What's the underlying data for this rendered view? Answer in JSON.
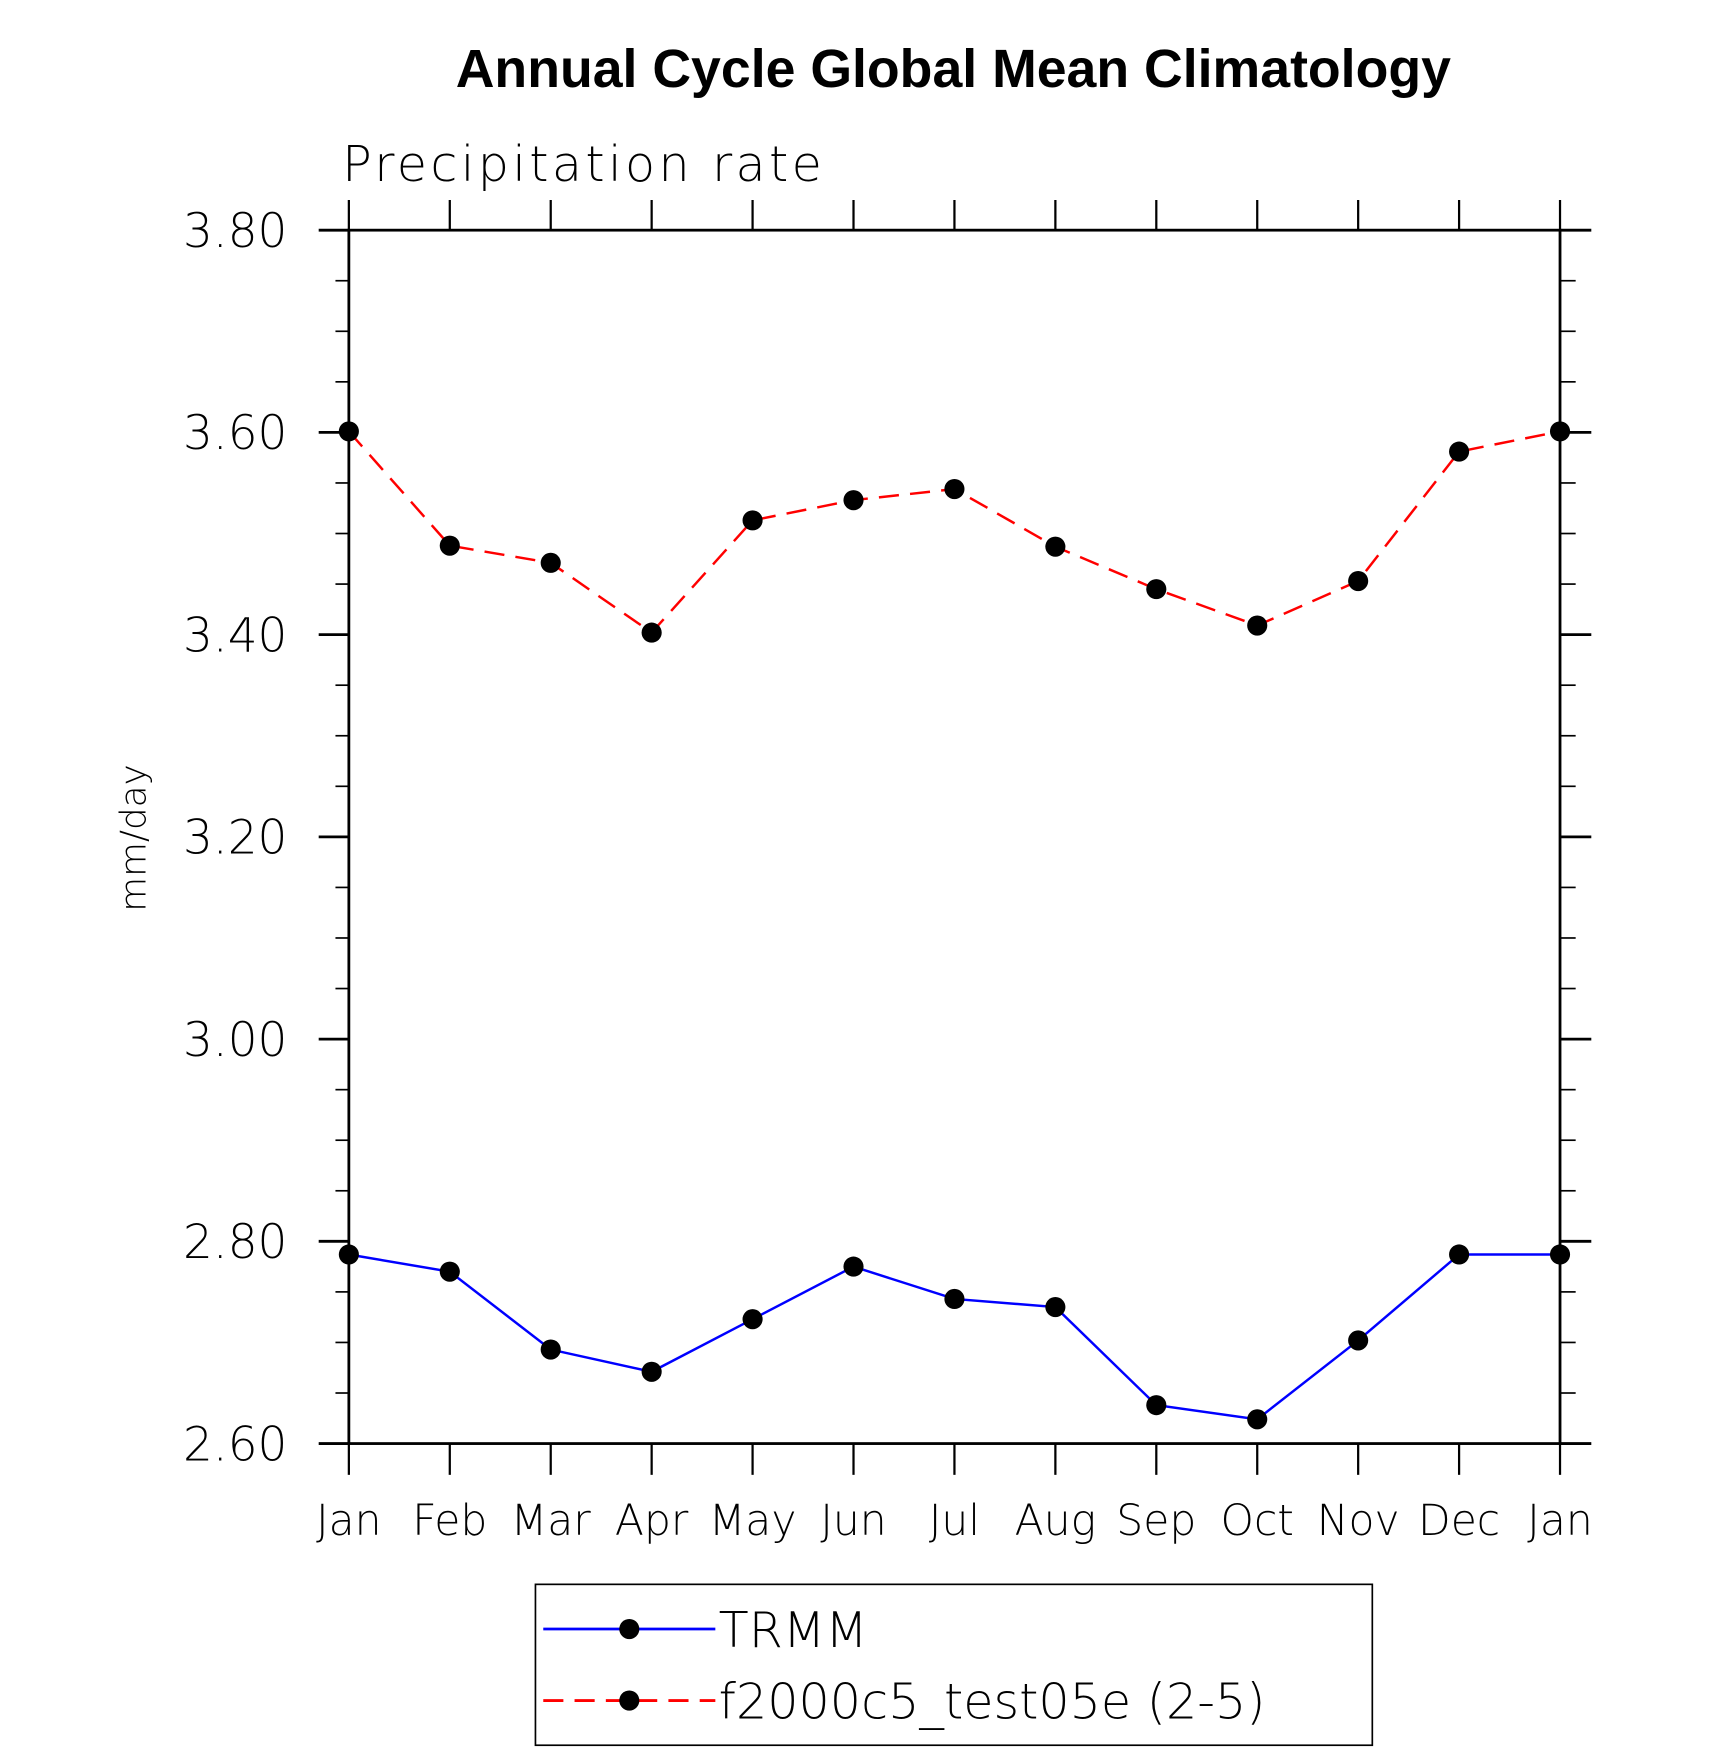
{
  "chart_data": {
    "type": "line",
    "title": "Annual Cycle Global Mean Climatology",
    "subtitle": "Precipitation rate",
    "xlabel": "",
    "ylabel": "mm/day",
    "categories": [
      "Jan",
      "Feb",
      "Mar",
      "Apr",
      "May",
      "Jun",
      "Jul",
      "Aug",
      "Sep",
      "Oct",
      "Nov",
      "Dec",
      "Jan"
    ],
    "ylim": [
      2.6,
      3.8
    ],
    "yticks": [
      "3.80",
      "3.60",
      "3.40",
      "3.20",
      "3.00",
      "2.80",
      "2.60"
    ],
    "ytick_values": [
      3.8,
      3.6,
      3.4,
      3.2,
      3.0,
      2.8,
      2.6
    ],
    "grid": false,
    "legend_position": "bottom-center",
    "series": [
      {
        "name": "TRMM",
        "color": "#0000ff",
        "dash": "solid",
        "values": [
          2.787,
          2.77,
          2.693,
          2.671,
          2.723,
          2.775,
          2.743,
          2.735,
          2.638,
          2.624,
          2.702,
          2.787,
          2.787
        ]
      },
      {
        "name": "f2000c5_test05e (2-5)",
        "color": "#ff0000",
        "dash": "dashed",
        "values": [
          3.601,
          3.488,
          3.471,
          3.402,
          3.513,
          3.533,
          3.544,
          3.487,
          3.445,
          3.409,
          3.453,
          3.581,
          3.601
        ]
      }
    ]
  }
}
